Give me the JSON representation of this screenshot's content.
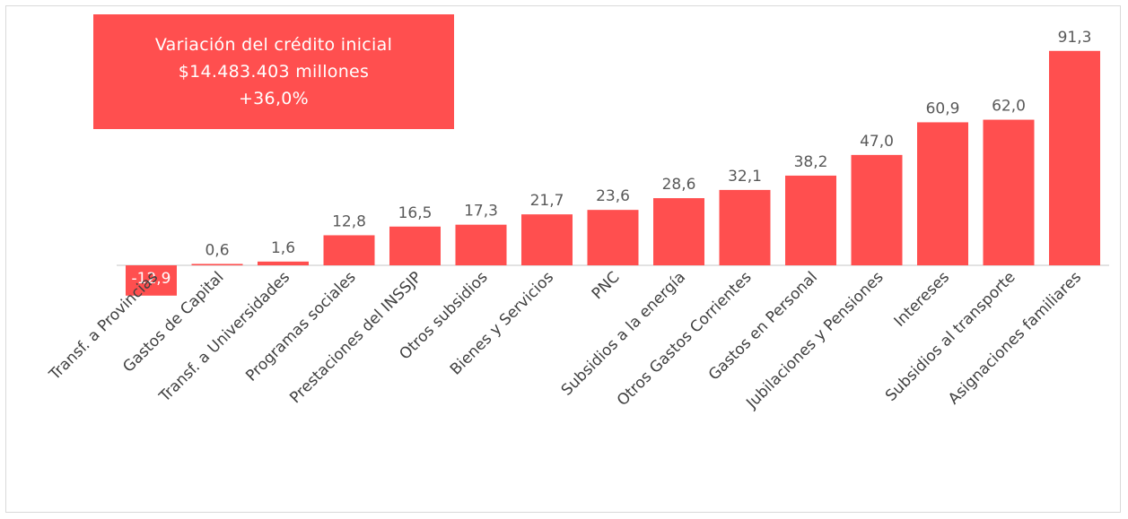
{
  "callout": {
    "line1": "Variación del crédito inicial",
    "line2": "$14.483.403 millones",
    "line3": "+36,0%"
  },
  "colors": {
    "bar": "#ff4f4f",
    "axis": "#d9d9d9"
  },
  "chart_data": {
    "type": "bar",
    "categories": [
      "Transf. a Provincias",
      "Gastos de Capital",
      "Transf. a Universidades",
      "Programas sociales",
      "Prestaciones del INSSJP",
      "Otros subsidios",
      "Bienes y Servicios",
      "PNC",
      "Subsidios a la energía",
      "Otros Gastos Corrientes",
      "Gastos en Personal",
      "Jubilaciones y Pensiones",
      "Intereses",
      "Subsidios al transporte",
      "Asignaciones familiares"
    ],
    "values": [
      -12.9,
      0.6,
      1.6,
      12.8,
      16.5,
      17.3,
      21.7,
      23.6,
      28.6,
      32.1,
      38.2,
      47.0,
      60.9,
      62.0,
      91.3
    ],
    "value_labels": [
      "-12,9",
      "0,6",
      "1,6",
      "12,8",
      "16,5",
      "17,3",
      "21,7",
      "23,6",
      "28,6",
      "32,1",
      "38,2",
      "47,0",
      "60,9",
      "62,0",
      "91,3"
    ],
    "title": "",
    "xlabel": "",
    "ylabel": "",
    "grid": false
  }
}
